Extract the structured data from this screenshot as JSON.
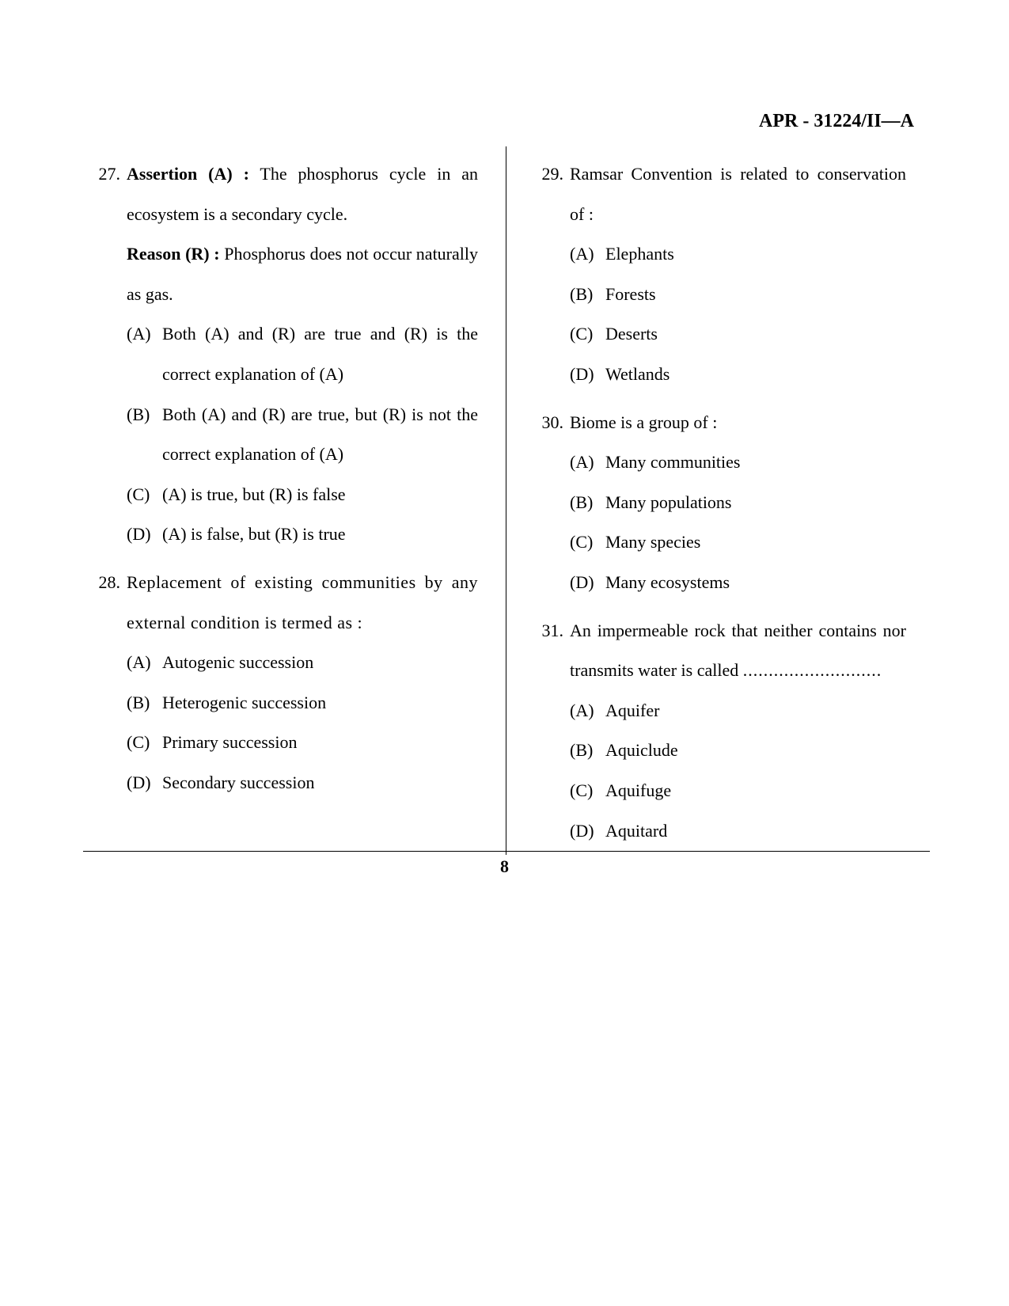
{
  "header": "APR - 31224/II—A",
  "page_number": "8",
  "left_column": {
    "q27": {
      "number": "27.",
      "assertion_label": "Assertion (A) :",
      "assertion_text": " The phosphorus cycle in an ecosystem is a secondary cycle.",
      "reason_label": "Reason (R) :",
      "reason_text": " Phosphorus does not occur naturally as gas.",
      "opts": {
        "A": {
          "label": "(A)",
          "text": "Both (A) and (R) are true and (R) is the correct explanation of (A)"
        },
        "B": {
          "label": "(B)",
          "text": "Both (A) and (R) are true, but (R) is not the correct explanation of (A)"
        },
        "C": {
          "label": "(C)",
          "text": "(A) is true, but (R) is false"
        },
        "D": {
          "label": "(D)",
          "text": "(A) is false, but (R) is true"
        }
      }
    },
    "q28": {
      "number": "28.",
      "stem": "Replacement of existing communities by any external condition is termed as :",
      "opts": {
        "A": {
          "label": "(A)",
          "text": "Autogenic succession"
        },
        "B": {
          "label": "(B)",
          "text": "Heterogenic succession"
        },
        "C": {
          "label": "(C)",
          "text": "Primary succession"
        },
        "D": {
          "label": "(D)",
          "text": "Secondary succession"
        }
      }
    }
  },
  "right_column": {
    "q29": {
      "number": "29.",
      "stem": "Ramsar Convention is related to conservation of :",
      "opts": {
        "A": {
          "label": "(A)",
          "text": "Elephants"
        },
        "B": {
          "label": "(B)",
          "text": "Forests"
        },
        "C": {
          "label": "(C)",
          "text": "Deserts"
        },
        "D": {
          "label": "(D)",
          "text": "Wetlands"
        }
      }
    },
    "q30": {
      "number": "30.",
      "stem": "Biome is a group of :",
      "opts": {
        "A": {
          "label": "(A)",
          "text": "Many communities"
        },
        "B": {
          "label": "(B)",
          "text": "Many populations"
        },
        "C": {
          "label": "(C)",
          "text": "Many species"
        },
        "D": {
          "label": "(D)",
          "text": "Many ecosystems"
        }
      }
    },
    "q31": {
      "number": "31.",
      "stem_pre": "An impermeable rock that neither contains nor transmits water is called ",
      "dots": "...........................",
      "opts": {
        "A": {
          "label": "(A)",
          "text": "Aquifer"
        },
        "B": {
          "label": "(B)",
          "text": "Aquiclude"
        },
        "C": {
          "label": "(C)",
          "text": "Aquifuge"
        },
        "D": {
          "label": "(D)",
          "text": "Aquitard"
        }
      }
    }
  }
}
